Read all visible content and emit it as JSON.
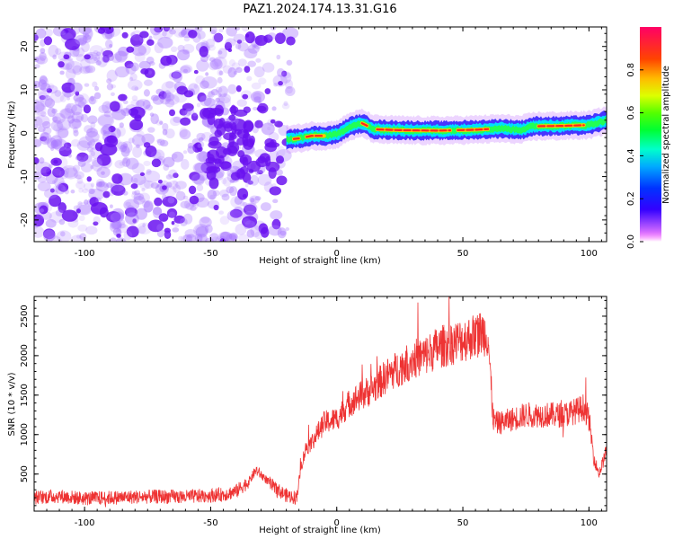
{
  "title": "PAZ1.2024.174.13.31.G16",
  "colors": {
    "snr_line": "#ee3333",
    "cloud": "#a877ff",
    "cloud_dense": "#6a12f0",
    "axis": "#000000"
  },
  "chart_data": [
    {
      "type": "heatmap",
      "title": "PAZ1.2024.174.13.31.G16",
      "xlabel": "Height of straight line (km)",
      "ylabel": "Frequency (Hz)",
      "xlim": [
        -120,
        107
      ],
      "ylim": [
        -25,
        24.5
      ],
      "x_ticks": [
        -100,
        -50,
        0,
        50,
        100
      ],
      "y_ticks": [
        -20,
        -10,
        0,
        10,
        20
      ],
      "colorbar": {
        "label": "Normalized spectral amplitude",
        "range": [
          0,
          1
        ],
        "ticks": [
          "0.0",
          "0.2",
          "0.4",
          "0.6",
          "0.8"
        ],
        "colormap": "gist_rainbow_r"
      },
      "noise_region_x": [
        -120,
        -20
      ],
      "signal_ridge": [
        {
          "x": -20,
          "y": -1.5
        },
        {
          "x": -15,
          "y": -1.2
        },
        {
          "x": -10,
          "y": -0.6
        },
        {
          "x": -5,
          "y": -0.6
        },
        {
          "x": 0,
          "y": -0.3
        },
        {
          "x": 5,
          "y": 1.5
        },
        {
          "x": 10,
          "y": 2.3
        },
        {
          "x": 15,
          "y": 0.9
        },
        {
          "x": 25,
          "y": 0.7
        },
        {
          "x": 40,
          "y": 0.6
        },
        {
          "x": 55,
          "y": 0.8
        },
        {
          "x": 65,
          "y": 1.1
        },
        {
          "x": 73,
          "y": 0.8
        },
        {
          "x": 78,
          "y": 1.6
        },
        {
          "x": 90,
          "y": 1.7
        },
        {
          "x": 100,
          "y": 1.9
        },
        {
          "x": 107,
          "y": 3.0
        }
      ]
    },
    {
      "type": "line",
      "xlabel": "Height of straight line (km)",
      "ylabel": "SNR (10 * v/v)",
      "xlim": [
        -120,
        107
      ],
      "ylim": [
        30,
        2750
      ],
      "x_ticks": [
        -100,
        -50,
        0,
        50,
        100
      ],
      "y_ticks": [
        500,
        1000,
        1500,
        2000,
        2500
      ],
      "series": [
        {
          "x": [
            -120,
            -110,
            -100,
            -90,
            -80,
            -70,
            -60,
            -50,
            -45,
            -40,
            -35,
            -32,
            -28,
            -25,
            -20,
            -16,
            -14,
            -12,
            -10,
            -5,
            0,
            5,
            10,
            15,
            20,
            25,
            30,
            35,
            40,
            45,
            50,
            55,
            58,
            60,
            61,
            62,
            63,
            65,
            70,
            75,
            80,
            85,
            90,
            95,
            98,
            100,
            102,
            104,
            107
          ],
          "values": [
            200,
            220,
            190,
            200,
            210,
            215,
            210,
            230,
            240,
            280,
            400,
            550,
            430,
            330,
            230,
            200,
            620,
            850,
            900,
            1150,
            1200,
            1400,
            1500,
            1600,
            1750,
            1850,
            1950,
            2000,
            2100,
            2150,
            2200,
            2250,
            2300,
            2250,
            1700,
            1200,
            1150,
            1150,
            1200,
            1250,
            1250,
            1250,
            1250,
            1300,
            1350,
            1200,
            700,
            500,
            800
          ]
        }
      ]
    }
  ]
}
